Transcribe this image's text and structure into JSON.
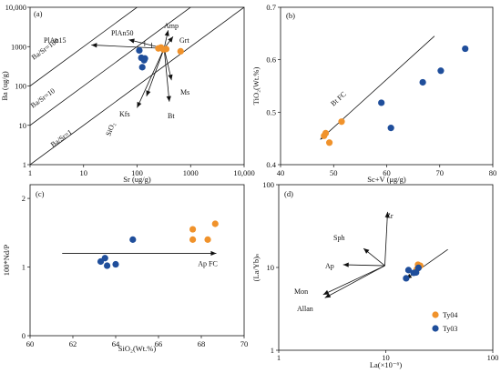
{
  "colors": {
    "Ty04": "#F0922B",
    "Ty03": "#1F4E9B",
    "axis": "#111111"
  },
  "chart_data": [
    {
      "panel": "(a)",
      "type": "scatter",
      "xscale": "log",
      "yscale": "log",
      "xlim": [
        1,
        10000
      ],
      "ylim": [
        1,
        10000
      ],
      "xlabel": "Sr (ug/g)",
      "ylabel": "Ba (ug/g)",
      "xticks": [
        "1",
        "10",
        "100",
        "1000",
        "10,000"
      ],
      "yticks": [
        "1",
        "10",
        "100",
        "1000",
        "10,000"
      ],
      "ratio_lines": [
        {
          "label": "Ba/Sr=100",
          "ratio": 100
        },
        {
          "label": "Ba/Sr=10",
          "ratio": 10
        },
        {
          "label": "Ba/Sr=1",
          "ratio": 1
        }
      ],
      "vectors": [
        {
          "label": "PlAn15",
          "to": [
            14,
            1100
          ]
        },
        {
          "label": "PlAn50",
          "to": [
            70,
            1500
          ]
        },
        {
          "label": "Amp",
          "to": [
            380,
            2600
          ]
        },
        {
          "label": "Grt",
          "to": [
            470,
            1800
          ]
        },
        {
          "label": "Ms",
          "to": [
            440,
            140
          ]
        },
        {
          "label": "Bt",
          "to": [
            400,
            40
          ]
        },
        {
          "label": "Kfs",
          "to": [
            150,
            55
          ]
        },
        {
          "label": "SiO₂",
          "to": [
            100,
            28
          ]
        }
      ],
      "vector_origin": [
        320,
        900
      ],
      "series": [
        {
          "name": "Ty04",
          "points": [
            [
              250,
              900
            ],
            [
              280,
              950
            ],
            [
              310,
              850
            ],
            [
              350,
              870
            ],
            [
              650,
              760
            ]
          ]
        },
        {
          "name": "Ty03",
          "points": [
            [
              110,
              800
            ],
            [
              120,
              520
            ],
            [
              135,
              450
            ],
            [
              140,
              500
            ],
            [
              125,
              300
            ]
          ]
        }
      ]
    },
    {
      "panel": "(b)",
      "type": "scatter",
      "xlim": [
        40,
        80
      ],
      "ylim": [
        0.4,
        0.7
      ],
      "xlabel": "Sc+V (μg/g)",
      "ylabel": "TiO₂(Wt.%)",
      "xticks": [
        "40",
        "50",
        "60",
        "70",
        "80"
      ],
      "yticks": [
        "0.4",
        "0.5",
        "0.6",
        "0.7"
      ],
      "fc_label": "Bt FC",
      "fc_line": [
        [
          47.5,
          0.448
        ],
        [
          69,
          0.645
        ]
      ],
      "series": [
        {
          "name": "Ty04",
          "points": [
            [
              48.2,
              0.455
            ],
            [
              48.5,
              0.46
            ],
            [
              49.2,
              0.442
            ],
            [
              51.5,
              0.482
            ]
          ]
        },
        {
          "name": "Ty03",
          "points": [
            [
              59,
              0.518
            ],
            [
              60.8,
              0.47
            ],
            [
              66.8,
              0.557
            ],
            [
              70.2,
              0.579
            ],
            [
              74.8,
              0.621
            ]
          ]
        }
      ]
    },
    {
      "panel": "(c)",
      "type": "scatter",
      "xlim": [
        60,
        70
      ],
      "ylim": [
        0,
        2.2
      ],
      "xlabel": "SiO₂(Wt.%)",
      "ylabel": "100*Nd/P",
      "xticks": [
        "60",
        "62",
        "64",
        "66",
        "68",
        "70"
      ],
      "yticks": [
        "0",
        "1",
        "2"
      ],
      "fc_label": "Ap FC",
      "fc_line": [
        [
          61.5,
          1.2
        ],
        [
          68.7,
          1.2
        ]
      ],
      "series": [
        {
          "name": "Ty04",
          "points": [
            [
              67.6,
              1.55
            ],
            [
              67.6,
              1.4
            ],
            [
              68.3,
              1.4
            ],
            [
              68.65,
              1.63
            ]
          ]
        },
        {
          "name": "Ty03",
          "points": [
            [
              63.3,
              1.08
            ],
            [
              63.5,
              1.13
            ],
            [
              63.6,
              1.02
            ],
            [
              64,
              1.04
            ],
            [
              64.8,
              1.4
            ]
          ]
        }
      ]
    },
    {
      "panel": "(d)",
      "type": "scatter",
      "xscale": "log",
      "yscale": "log",
      "xlim": [
        1,
        100
      ],
      "ylim": [
        1,
        100
      ],
      "xlabel": "La(×10⁻⁶)",
      "ylabel": "(La/Yb)ₙ",
      "xticks": [
        "1",
        "10",
        "100"
      ],
      "yticks": [
        "1",
        "10",
        "100"
      ],
      "vector_origin": [
        9.8,
        10.5
      ],
      "vectors": [
        {
          "label": "Zr",
          "to": [
            10.4,
            47
          ]
        },
        {
          "label": "Sph",
          "to": [
            6.2,
            17
          ]
        },
        {
          "label": "Ap",
          "to": [
            4.0,
            10.8
          ]
        },
        {
          "label": "Mon",
          "to": [
            2.6,
            4.7
          ]
        },
        {
          "label": "Allan",
          "to": [
            2.7,
            4.3
          ]
        }
      ],
      "trend_line": [
        [
          15.5,
          7.3
        ],
        [
          38,
          16.5
        ]
      ],
      "legend": [
        "Ty04",
        "Ty03"
      ],
      "series": [
        {
          "name": "Ty04",
          "points": [
            [
              20,
              10.8
            ],
            [
              21,
              10.5
            ],
            [
              19.5,
              9.5
            ]
          ]
        },
        {
          "name": "Ty03",
          "points": [
            [
              15.5,
              7.4
            ],
            [
              16.3,
              9.3
            ],
            [
              18.2,
              8.6
            ],
            [
              19.2,
              8.7
            ],
            [
              20.2,
              9.9
            ]
          ]
        }
      ]
    }
  ]
}
